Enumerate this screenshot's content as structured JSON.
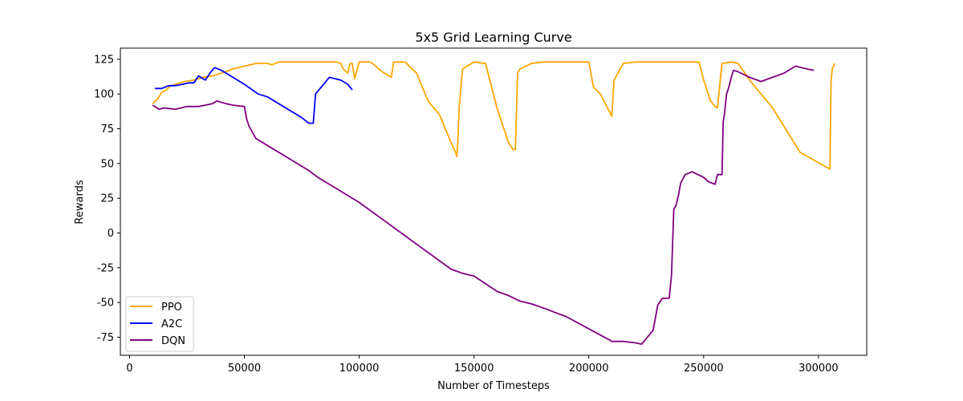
{
  "chart_data": {
    "type": "line",
    "title": "5x5 Grid Learning Curve",
    "xlabel": "Number of Timesteps",
    "ylabel": "Rewards",
    "xlim": [
      -4000,
      321000
    ],
    "ylim": [
      -88,
      133
    ],
    "xticks": [
      0,
      50000,
      100000,
      150000,
      200000,
      250000,
      300000
    ],
    "yticks": [
      -75,
      -50,
      -25,
      0,
      25,
      50,
      75,
      100,
      125
    ],
    "grid": false,
    "legend_position": "lower-left",
    "series": [
      {
        "name": "PPO",
        "color": "#FFA500",
        "x": [
          10000,
          12000,
          14000,
          16000,
          18000,
          20000,
          24000,
          28000,
          32000,
          36000,
          40000,
          45000,
          50000,
          55000,
          60000,
          62000,
          65000,
          80000,
          90000,
          92000,
          93000,
          95000,
          96000,
          97000,
          98000,
          100000,
          105000,
          110000,
          114000,
          115000,
          120000,
          125000,
          130000,
          135000,
          140000,
          142000,
          142500,
          143000,
          143500,
          145000,
          150000,
          155000,
          160000,
          165000,
          167000,
          168000,
          169000,
          170000,
          175000,
          180000,
          190000,
          200000,
          202000,
          205000,
          210000,
          211000,
          215000,
          220000,
          230000,
          240000,
          248000,
          250000,
          253000,
          255000,
          256000,
          258000,
          262000,
          265000,
          270000,
          280000,
          292000,
          305000,
          305500,
          306000,
          307000
        ],
        "y": [
          93,
          96,
          101,
          103,
          106,
          107,
          109,
          110,
          112,
          113,
          115,
          118,
          120,
          122,
          122,
          121,
          123,
          123,
          123,
          122,
          118,
          115,
          122,
          122,
          111,
          123,
          123,
          116,
          112,
          123,
          123,
          115,
          95,
          85,
          65,
          58,
          55,
          67,
          90,
          118,
          123,
          122,
          90,
          65,
          60,
          60,
          115,
          118,
          122,
          123,
          123,
          123,
          105,
          100,
          84,
          110,
          122,
          123,
          123,
          123,
          123,
          110,
          95,
          91,
          90,
          122,
          123,
          122,
          110,
          90,
          58,
          46,
          110,
          118,
          122
        ]
      },
      {
        "name": "A2C",
        "color": "#0000FF",
        "x": [
          11000,
          14000,
          17000,
          20000,
          23000,
          26000,
          28000,
          30000,
          33000,
          35000,
          37000,
          40000,
          45000,
          50000,
          56000,
          60000,
          70000,
          75000,
          78000,
          80000,
          81000,
          85000,
          87000,
          92000,
          93000,
          95000,
          97000
        ],
        "y": [
          104,
          104,
          106,
          106,
          107,
          108,
          108,
          113,
          110,
          115,
          119,
          117,
          112,
          107,
          100,
          98,
          88,
          83,
          79,
          79,
          100,
          108,
          112,
          110,
          109,
          107,
          103
        ]
      },
      {
        "name": "DQN",
        "color": "#800080",
        "x": [
          10000,
          13000,
          15000,
          20000,
          25000,
          30000,
          33000,
          36000,
          38000,
          42000,
          45000,
          50000,
          51000,
          52000,
          55000,
          60000,
          70000,
          78000,
          82000,
          85000,
          90000,
          100000,
          110000,
          120000,
          130000,
          140000,
          145000,
          150000,
          160000,
          165000,
          170000,
          175000,
          182000,
          185000,
          190000,
          200000,
          209000,
          210000,
          215000,
          220000,
          223000,
          228000,
          230000,
          232000,
          235000,
          236000,
          237000,
          238000,
          239000,
          240000,
          242000,
          245000,
          250000,
          252000,
          255000,
          256000,
          257000,
          258000,
          258500,
          259000,
          260000,
          261000,
          262000,
          263000,
          265000,
          270000,
          275000,
          280000,
          285000,
          290000,
          295000,
          298000
        ],
        "y": [
          92,
          89,
          90,
          89,
          91,
          91,
          92,
          93,
          95,
          93,
          92,
          91,
          82,
          77,
          68,
          63,
          53,
          45,
          40,
          37,
          32,
          22,
          10,
          -2,
          -14,
          -26,
          -29,
          -31,
          -42,
          -45,
          -49,
          -51,
          -55,
          -57,
          -60,
          -69,
          -77,
          -78,
          -78,
          -79,
          -80,
          -70,
          -52,
          -47,
          -47,
          -30,
          17,
          20,
          27,
          36,
          42,
          44,
          40,
          37,
          35,
          42,
          42,
          42,
          80,
          85,
          100,
          105,
          112,
          117,
          116,
          112,
          109,
          112,
          115,
          120,
          118,
          117
        ]
      }
    ]
  }
}
